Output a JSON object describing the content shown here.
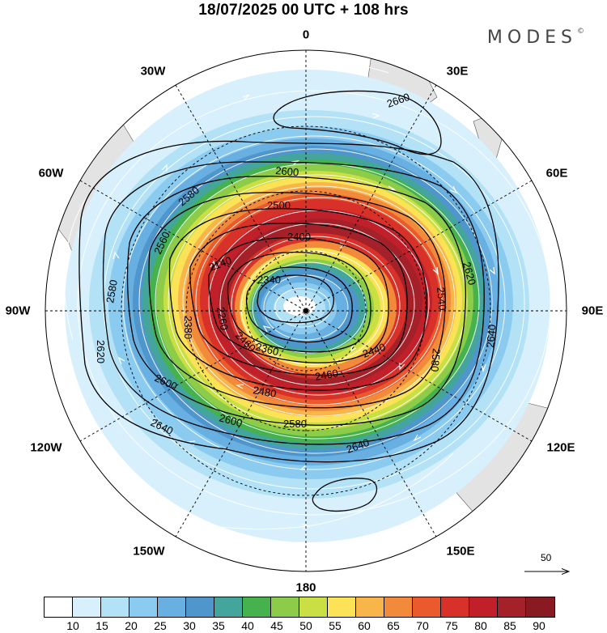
{
  "header": {
    "title": "18/07/2025  00 UTC  + 108 hrs",
    "brand": "MODES",
    "brand_mark": "©"
  },
  "map": {
    "projection": "south polar stereographic",
    "longitude_labels": {
      "top": "0",
      "bottom": "180",
      "left": "90W",
      "right": "90E",
      "upper_left_30": "30W",
      "upper_right_30": "30E",
      "left_60_upper": "60W",
      "right_60_upper": "60E",
      "left_120": "120W",
      "right_120": "120E",
      "left_150": "150W",
      "right_150": "150E"
    },
    "contour_labels": [
      "2660",
      "2600",
      "2580",
      "2500",
      "2400",
      "2140",
      "2340",
      "2260",
      "2380",
      "2560",
      "2580",
      "2620",
      "2540",
      "2640",
      "2620",
      "2580",
      "2460",
      "2440",
      "2360",
      "2480",
      "2460",
      "2600",
      "2580",
      "2640",
      "2640",
      "2600"
    ],
    "reference_vector": "50",
    "colors": {
      "land": "#e3e3e3",
      "contour": "#000000",
      "streamline": "#ffffff"
    }
  },
  "colorbar": {
    "ticks": [
      "10",
      "15",
      "20",
      "25",
      "30",
      "35",
      "40",
      "45",
      "50",
      "55",
      "60",
      "65",
      "70",
      "75",
      "80",
      "85",
      "90"
    ],
    "colors": [
      "#ffffff",
      "#d8f0fb",
      "#b3e2f7",
      "#8ccbf0",
      "#69b0e2",
      "#4f96cc",
      "#44a59c",
      "#46b24e",
      "#8ccc48",
      "#c9df43",
      "#fbe257",
      "#f7b54a",
      "#f28a3c",
      "#ea5a2d",
      "#d8312a",
      "#c11f2a",
      "#a5212a",
      "#8a1a22"
    ]
  }
}
